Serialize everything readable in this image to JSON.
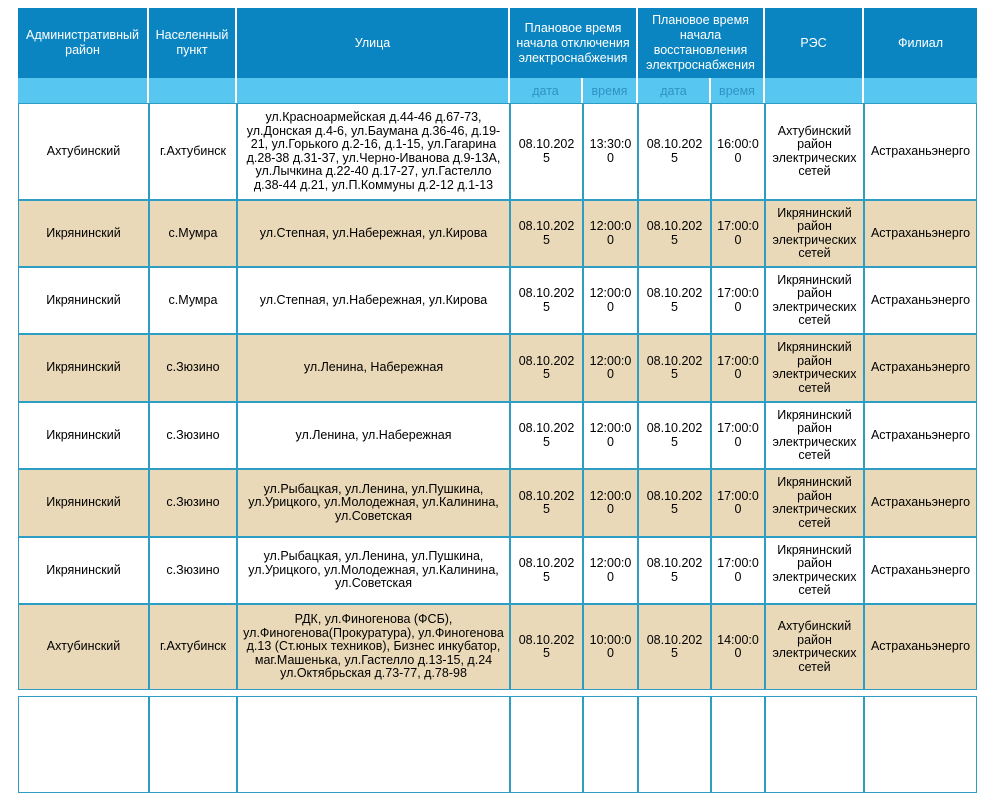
{
  "colors": {
    "header_bg": "#0b85c1",
    "header_text": "#ffffff",
    "subheader_bg": "#57c6f1",
    "subheader_text": "#2f93c4",
    "grid_border": "#2d9dc3",
    "row_bg": "#ffffff",
    "row_shaded_bg": "#ead9b8",
    "body_text": "#000000"
  },
  "table": {
    "headers": {
      "district": "Административный район",
      "settlement": "Населенный пункт",
      "street": "Улица",
      "outage_start": "Плановое время начала отключения электроснабжения",
      "restore_start": "Плановое время начала восстановления электроснабжения",
      "res": "РЭС",
      "branch": "Филиал"
    },
    "subheaders": {
      "date": "дата",
      "time": "время"
    },
    "rows": [
      {
        "district": "Ахтубинский",
        "settlement": "г.Ахтубинск",
        "street": "ул.Красноармейская д.44-46 д.67-73, ул.Донская д.4-6, ул.Баумана д.36-46, д.19-21, ул.Горького д.2-16, д.1-15, ул.Гагарина д.28-38 д.31-37, ул.Черно-Иванова д.9-13А, ул.Лычкина д.22-40 д.17-27, ул.Гастелло д.38-44 д.21, ул.П.Коммуны д.2-12 д.1-13",
        "off_date": "08.10.2025",
        "off_time": "13:30:00",
        "on_date": "08.10.2025",
        "on_time": "16:00:00",
        "res": "Ахтубинский район электрических сетей",
        "branch": "Астраханьэнерго"
      },
      {
        "district": "Икрянинский",
        "settlement": "с.Мумра",
        "street": "ул.Степная, ул.Набережная, ул.Кирова",
        "off_date": "08.10.2025",
        "off_time": "12:00:00",
        "on_date": "08.10.2025",
        "on_time": "17:00:00",
        "res": "Икрянинский район электрических сетей",
        "branch": "Астраханьэнерго"
      },
      {
        "district": "Икрянинский",
        "settlement": "с.Мумра",
        "street": "ул.Степная, ул.Набережная, ул.Кирова",
        "off_date": "08.10.2025",
        "off_time": "12:00:00",
        "on_date": "08.10.2025",
        "on_time": "17:00:00",
        "res": "Икрянинский район электрических сетей",
        "branch": "Астраханьэнерго"
      },
      {
        "district": "Икрянинский",
        "settlement": "с.Зюзино",
        "street": "ул.Ленина, Набережная",
        "off_date": "08.10.2025",
        "off_time": "12:00:00",
        "on_date": "08.10.2025",
        "on_time": "17:00:00",
        "res": "Икрянинский район электрических сетей",
        "branch": "Астраханьэнерго"
      },
      {
        "district": "Икрянинский",
        "settlement": "с.Зюзино",
        "street": "ул.Ленина, ул.Набережная",
        "off_date": "08.10.2025",
        "off_time": "12:00:00",
        "on_date": "08.10.2025",
        "on_time": "17:00:00",
        "res": "Икрянинский район электрических сетей",
        "branch": "Астраханьэнерго"
      },
      {
        "district": "Икрянинский",
        "settlement": "с.Зюзино",
        "street": "ул.Рыбацкая, ул.Ленина, ул.Пушкина, ул.Урицкого, ул.Молодежная, ул.Калинина, ул.Советская",
        "off_date": "08.10.2025",
        "off_time": "12:00:00",
        "on_date": "08.10.2025",
        "on_time": "17:00:00",
        "res": "Икрянинский район электрических сетей",
        "branch": "Астраханьэнерго"
      },
      {
        "district": "Икрянинский",
        "settlement": "с.Зюзино",
        "street": "ул.Рыбацкая, ул.Ленина, ул.Пушкина, ул.Урицкого, ул.Молодежная, ул.Калинина, ул.Советская",
        "off_date": "08.10.2025",
        "off_time": "12:00:00",
        "on_date": "08.10.2025",
        "on_time": "17:00:00",
        "res": "Икрянинский район электрических сетей",
        "branch": "Астраханьэнерго"
      },
      {
        "district": "Ахтубинский",
        "settlement": "г.Ахтубинск",
        "street": "РДК, ул.Финогенова (ФСБ), ул.Финогенова(Прокуратура), ул.Финогенова д.13 (Ст.юных техников), Бизнес инкубатор, маг.Машенька, ул.Гастелло д.13-15, д.24 ул.Октябрьская д.73-77, д.78-98",
        "off_date": "08.10.2025",
        "off_time": "10:00:00",
        "on_date": "08.10.2025",
        "on_time": "14:00:00",
        "res": "Ахтубинский район электрических сетей",
        "branch": "Астраханьэнерго"
      }
    ]
  }
}
